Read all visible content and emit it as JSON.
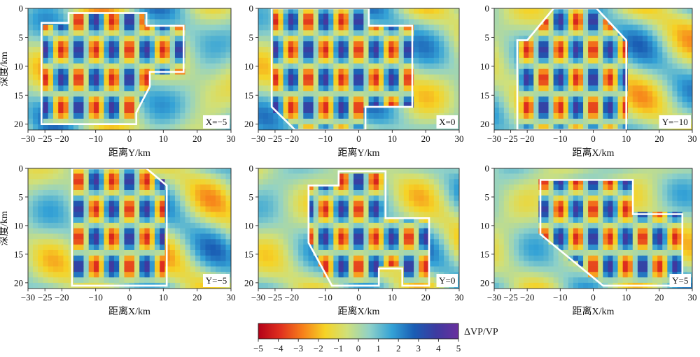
{
  "chart_data": [
    {
      "type": "heatmap",
      "xlabel": "距离Y/km",
      "ylabel": "深度/km",
      "label": "X=−5",
      "xlim": [
        -30,
        30
      ],
      "ylim": [
        0,
        21
      ],
      "xticks": [
        "−30",
        "−25",
        "−20",
        "−10",
        "0",
        "10",
        "20",
        "30"
      ],
      "xtick_values": [
        -30,
        -25,
        -20,
        -10,
        0,
        10,
        20,
        30
      ],
      "yticks": [
        "0",
        "5",
        "10",
        "15",
        "20"
      ],
      "ytick_values": [
        0,
        5,
        10,
        15,
        20
      ],
      "outline": [
        [
          -26,
          2.5
        ],
        [
          -18,
          2.5
        ],
        [
          -18,
          0.8
        ],
        [
          5,
          0.8
        ],
        [
          5,
          3
        ],
        [
          16,
          3
        ],
        [
          16,
          11
        ],
        [
          6,
          11
        ],
        [
          6,
          13.5
        ],
        [
          2,
          18
        ],
        [
          2,
          20
        ],
        [
          -26,
          20
        ]
      ]
    },
    {
      "type": "heatmap",
      "xlabel": "距离Y/km",
      "ylabel": "",
      "label": "X=0",
      "xlim": [
        -30,
        30
      ],
      "ylim": [
        0,
        21
      ],
      "xticks": [
        "−30",
        "−25",
        "−20",
        "−10",
        "0",
        "10",
        "20",
        "30"
      ],
      "xtick_values": [
        -30,
        -25,
        -20,
        -10,
        0,
        10,
        20,
        30
      ],
      "yticks": [
        "0",
        "5",
        "10",
        "15",
        "20"
      ],
      "ytick_values": [
        0,
        5,
        10,
        15,
        20
      ],
      "outline": [
        [
          -26,
          0
        ],
        [
          3,
          0
        ],
        [
          3,
          3
        ],
        [
          16,
          3
        ],
        [
          16,
          17
        ],
        [
          2,
          17
        ],
        [
          2,
          21
        ],
        [
          -19,
          21
        ],
        [
          -26,
          17
        ]
      ]
    },
    {
      "type": "heatmap",
      "xlabel": "距离X/km",
      "ylabel": "",
      "label": "Y=−10",
      "xlim": [
        -30,
        30
      ],
      "ylim": [
        0,
        21
      ],
      "xticks": [
        "−30",
        "−25",
        "−20",
        "−10",
        "0",
        "10",
        "20",
        "30"
      ],
      "xtick_values": [
        -30,
        -25,
        -20,
        -10,
        0,
        10,
        20,
        30
      ],
      "yticks": [
        "0",
        "5",
        "10",
        "15",
        "20"
      ],
      "ytick_values": [
        0,
        5,
        10,
        15,
        20
      ],
      "outline": [
        [
          -23,
          5.5
        ],
        [
          -20,
          5.5
        ],
        [
          -12,
          0
        ],
        [
          1,
          0
        ],
        [
          10,
          5.5
        ],
        [
          10,
          21
        ],
        [
          -23,
          21
        ]
      ]
    },
    {
      "type": "heatmap",
      "xlabel": "距离X/km",
      "ylabel": "深度/km",
      "label": "Y=−5",
      "xlim": [
        -30,
        30
      ],
      "ylim": [
        0,
        21
      ],
      "xticks": [
        "−30",
        "−25",
        "−20",
        "−10",
        "0",
        "10",
        "20",
        "30"
      ],
      "xtick_values": [
        -30,
        -25,
        -20,
        -10,
        0,
        10,
        20,
        30
      ],
      "yticks": [
        "0",
        "5",
        "10",
        "15",
        "20"
      ],
      "ytick_values": [
        0,
        5,
        10,
        15,
        20
      ],
      "outline": [
        [
          -17,
          0
        ],
        [
          5,
          0
        ],
        [
          11,
          3
        ],
        [
          11,
          20.5
        ],
        [
          -17,
          20.5
        ]
      ]
    },
    {
      "type": "heatmap",
      "xlabel": "距离X/km",
      "ylabel": "",
      "label": "Y=0",
      "xlim": [
        -30,
        30
      ],
      "ylim": [
        0,
        21
      ],
      "xticks": [
        "−30",
        "−25",
        "−20",
        "−10",
        "0",
        "10",
        "20",
        "30"
      ],
      "xtick_values": [
        -30,
        -25,
        -20,
        -10,
        0,
        10,
        20,
        30
      ],
      "yticks": [
        "0",
        "5",
        "10",
        "15",
        "20"
      ],
      "ytick_values": [
        0,
        5,
        10,
        15,
        20
      ],
      "outline": [
        [
          -15,
          3
        ],
        [
          -6,
          3
        ],
        [
          -6,
          0.5
        ],
        [
          8,
          0.5
        ],
        [
          8,
          8.7
        ],
        [
          21,
          8.7
        ],
        [
          21,
          20.5
        ],
        [
          13,
          20.5
        ],
        [
          13,
          17.5
        ],
        [
          6,
          17.5
        ],
        [
          6,
          20.5
        ],
        [
          -8,
          20.5
        ],
        [
          -15,
          13
        ]
      ]
    },
    {
      "type": "heatmap",
      "xlabel": "距离X/km",
      "ylabel": "",
      "label": "Y=5",
      "xlim": [
        -30,
        30
      ],
      "ylim": [
        0,
        21
      ],
      "xticks": [
        "−30",
        "−25",
        "−20",
        "−10",
        "0",
        "10",
        "20",
        "30"
      ],
      "xtick_values": [
        -30,
        -25,
        -20,
        -10,
        0,
        10,
        20,
        30
      ],
      "yticks": [
        "0",
        "5",
        "10",
        "15",
        "20"
      ],
      "ytick_values": [
        0,
        5,
        10,
        15,
        20
      ],
      "outline": [
        [
          -16,
          2
        ],
        [
          12,
          2
        ],
        [
          12,
          8
        ],
        [
          27,
          8
        ],
        [
          27,
          20.5
        ],
        [
          3,
          20.5
        ],
        [
          -16,
          11.5
        ]
      ]
    }
  ],
  "colorbar": {
    "label": "ΔVP/VP",
    "range": [
      -5,
      5
    ],
    "ticks": [
      "−5",
      "−4",
      "−3",
      "−2",
      "−1",
      "0",
      "1",
      "2",
      "3",
      "4",
      "5"
    ],
    "tick_values": [
      -5,
      -4,
      -3,
      -2,
      -1,
      0,
      1,
      2,
      3,
      4,
      5
    ],
    "colors": [
      "#b30018",
      "#e0301e",
      "#f7801a",
      "#f6d325",
      "#cfe07b",
      "#8fd1c8",
      "#34a2d6",
      "#1a5db4",
      "#3d3aa0",
      "#6a2f9e"
    ]
  },
  "outline_color": "#ffffff"
}
